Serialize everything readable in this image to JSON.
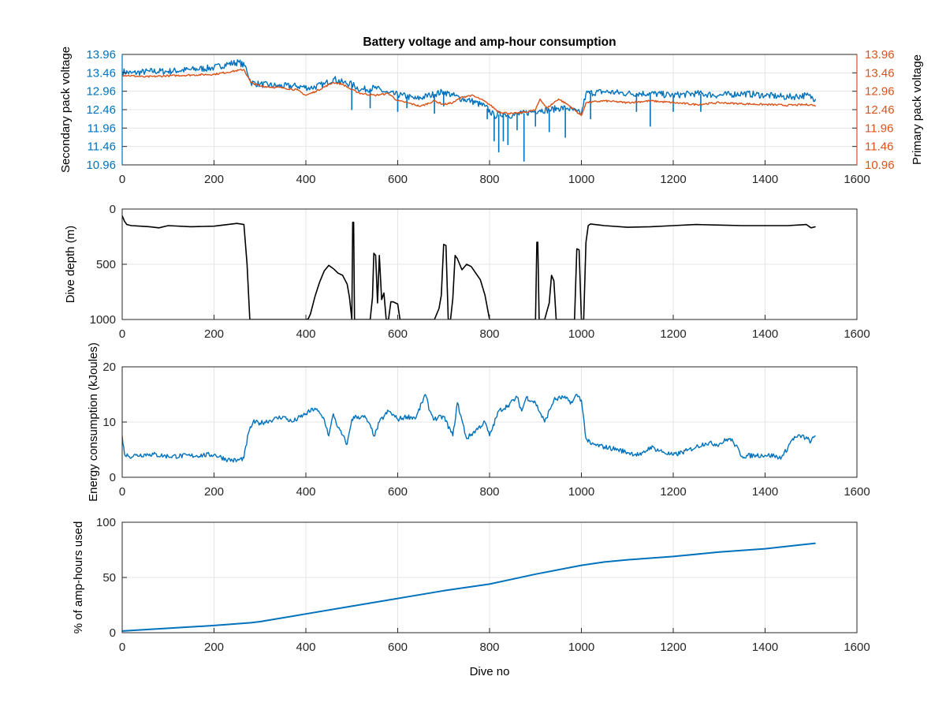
{
  "colors": {
    "secondary_voltage": "#0072BD",
    "primary_voltage": "#D95319",
    "dive_depth": "#000000",
    "energy": "#0072BD",
    "amp_hours": "#0072BD",
    "axis": "#262626"
  },
  "chart_data": [
    {
      "type": "line",
      "title": "Battery voltage and amp-hour consumption",
      "xlabel": "",
      "ylabel": "Secondary pack voltage",
      "y2label": "Primary pack voltage",
      "xlim": [
        0,
        1600
      ],
      "ylim": [
        10.96,
        13.96
      ],
      "y2lim": [
        10.96,
        13.96
      ],
      "xticks": [
        "0",
        "200",
        "400",
        "600",
        "800",
        "1000",
        "1200",
        "1400",
        "1600"
      ],
      "yticks": [
        "13.96",
        "13.46",
        "12.96",
        "12.46",
        "11.96",
        "11.46",
        "10.96"
      ],
      "y2ticks": [
        "13.96",
        "13.46",
        "12.96",
        "12.46",
        "11.96",
        "11.46",
        "10.96"
      ],
      "grid": true,
      "series": [
        {
          "name": "Secondary pack voltage",
          "axis": "left",
          "x": [
            0,
            20,
            60,
            100,
            150,
            200,
            230,
            255,
            270,
            280,
            300,
            340,
            380,
            410,
            440,
            460,
            480,
            500,
            520,
            550,
            580,
            610,
            640,
            670,
            700,
            720,
            740,
            760,
            790,
            810,
            830,
            850,
            870,
            890,
            910,
            930,
            950,
            970,
            990,
            1000,
            1010,
            1050,
            1100,
            1150,
            1200,
            1250,
            1300,
            1350,
            1400,
            1450,
            1490,
            1510
          ],
          "y": [
            13.5,
            13.45,
            13.5,
            13.5,
            13.55,
            13.6,
            13.7,
            13.75,
            13.6,
            13.2,
            13.15,
            13.1,
            13.1,
            13.05,
            13.15,
            13.3,
            13.2,
            13.15,
            13.0,
            13.05,
            12.9,
            12.85,
            12.75,
            12.85,
            12.95,
            12.85,
            12.75,
            12.7,
            12.55,
            12.3,
            12.35,
            12.3,
            12.35,
            12.4,
            12.45,
            12.45,
            12.5,
            12.5,
            12.4,
            12.35,
            12.9,
            12.95,
            12.9,
            12.9,
            12.85,
            12.9,
            12.85,
            12.9,
            12.85,
            12.8,
            12.85,
            12.75
          ],
          "spikes": [
            [
              500,
              12.45
            ],
            [
              540,
              12.5
            ],
            [
              600,
              12.4
            ],
            [
              620,
              12.5
            ],
            [
              680,
              12.35
            ],
            [
              700,
              12.55
            ],
            [
              795,
              12.2
            ],
            [
              810,
              11.6
            ],
            [
              820,
              11.3
            ],
            [
              830,
              11.6
            ],
            [
              840,
              11.5
            ],
            [
              860,
              11.9
            ],
            [
              875,
              11.05
            ],
            [
              900,
              12.0
            ],
            [
              930,
              11.85
            ],
            [
              965,
              11.7
            ],
            [
              1020,
              12.2
            ],
            [
              1120,
              12.4
            ],
            [
              1150,
              12.0
            ],
            [
              1200,
              12.4
            ],
            [
              1260,
              12.4
            ]
          ]
        },
        {
          "name": "Primary pack voltage",
          "axis": "right",
          "x": [
            0,
            50,
            100,
            150,
            200,
            240,
            265,
            280,
            300,
            350,
            380,
            400,
            420,
            460,
            480,
            500,
            520,
            550,
            580,
            600,
            620,
            650,
            680,
            700,
            720,
            740,
            760,
            780,
            800,
            820,
            850,
            880,
            900,
            910,
            925,
            950,
            970,
            990,
            1000,
            1010,
            1050,
            1100,
            1150,
            1200,
            1250,
            1300,
            1350,
            1400,
            1450,
            1500,
            1510
          ],
          "y": [
            13.4,
            13.35,
            13.38,
            13.4,
            13.42,
            13.5,
            13.55,
            13.2,
            13.1,
            13.05,
            13.0,
            12.85,
            12.95,
            13.2,
            13.15,
            13.0,
            12.9,
            12.85,
            12.9,
            12.7,
            12.65,
            12.55,
            12.7,
            12.6,
            12.65,
            12.8,
            12.85,
            12.75,
            12.6,
            12.4,
            12.35,
            12.4,
            12.45,
            12.75,
            12.5,
            12.75,
            12.6,
            12.4,
            12.3,
            12.65,
            12.7,
            12.65,
            12.7,
            12.65,
            12.6,
            12.65,
            12.62,
            12.6,
            12.58,
            12.6,
            12.55
          ]
        }
      ]
    },
    {
      "type": "line",
      "title": "",
      "xlabel": "",
      "ylabel": "Dive depth (m)",
      "xlim": [
        0,
        1600
      ],
      "ylim": [
        0,
        1000
      ],
      "y_reversed": true,
      "xticks": [
        "0",
        "200",
        "400",
        "600",
        "800",
        "1000",
        "1200",
        "1400",
        "1600"
      ],
      "yticks": [
        "0",
        "500",
        "1000"
      ],
      "grid": true,
      "series": [
        {
          "name": "",
          "x": [
            0,
            5,
            10,
            20,
            40,
            60,
            80,
            100,
            150,
            200,
            230,
            250,
            265,
            272,
            278,
            283,
            300,
            350,
            380,
            400,
            405,
            410,
            420,
            430,
            440,
            450,
            460,
            470,
            480,
            490,
            495,
            500,
            502,
            504,
            506,
            510,
            515,
            520,
            540,
            545,
            548,
            552,
            556,
            560,
            565,
            570,
            575,
            580,
            585,
            590,
            600,
            605,
            610,
            650,
            680,
            690,
            695,
            700,
            705,
            710,
            715,
            720,
            725,
            730,
            740,
            750,
            760,
            770,
            780,
            790,
            800,
            805,
            810,
            850,
            880,
            900,
            903,
            905,
            908,
            912,
            920,
            930,
            935,
            940,
            945,
            950,
            955,
            970,
            980,
            985,
            990,
            995,
            1000,
            1005,
            1010,
            1015,
            1020,
            1050,
            1100,
            1150,
            1200,
            1250,
            1300,
            1350,
            1400,
            1450,
            1490,
            1500,
            1510
          ],
          "y": [
            60,
            110,
            140,
            150,
            155,
            160,
            170,
            150,
            160,
            155,
            140,
            130,
            140,
            500,
            1000,
            1000,
            1000,
            1000,
            1000,
            1000,
            995,
            950,
            790,
            660,
            560,
            510,
            540,
            580,
            600,
            680,
            800,
            1000,
            120,
            120,
            1000,
            1000,
            1000,
            1000,
            1000,
            800,
            400,
            420,
            850,
            420,
            820,
            760,
            1000,
            1000,
            840,
            840,
            860,
            1000,
            1000,
            1000,
            1000,
            900,
            780,
            320,
            330,
            1000,
            1000,
            810,
            420,
            450,
            550,
            500,
            520,
            580,
            640,
            780,
            1000,
            1000,
            1000,
            1000,
            1000,
            1000,
            300,
            300,
            1000,
            1000,
            1000,
            850,
            600,
            650,
            1000,
            1000,
            1000,
            1000,
            1000,
            1000,
            360,
            370,
            1000,
            1000,
            300,
            150,
            135,
            150,
            165,
            160,
            150,
            140,
            145,
            150,
            150,
            150,
            140,
            170,
            160
          ]
        }
      ]
    },
    {
      "type": "line",
      "title": "",
      "xlabel": "",
      "ylabel": "Energy consumption (kJoules)",
      "xlim": [
        0,
        1600
      ],
      "ylim": [
        0,
        20
      ],
      "xticks": [
        "0",
        "200",
        "400",
        "600",
        "800",
        "1000",
        "1200",
        "1400",
        "1600"
      ],
      "yticks": [
        "20",
        "10",
        "0"
      ],
      "grid": true,
      "series": [
        {
          "name": "",
          "x": [
            0,
            5,
            15,
            30,
            60,
            100,
            150,
            200,
            230,
            250,
            265,
            275,
            285,
            300,
            330,
            350,
            370,
            400,
            420,
            440,
            450,
            460,
            470,
            490,
            500,
            510,
            530,
            550,
            560,
            580,
            600,
            620,
            640,
            660,
            670,
            680,
            700,
            720,
            730,
            750,
            770,
            790,
            800,
            820,
            840,
            860,
            870,
            880,
            900,
            920,
            940,
            960,
            980,
            990,
            1000,
            1010,
            1020,
            1050,
            1080,
            1100,
            1130,
            1150,
            1180,
            1200,
            1230,
            1250,
            1270,
            1300,
            1320,
            1330,
            1350,
            1380,
            1400,
            1420,
            1430,
            1440,
            1460,
            1480,
            1500,
            1510
          ],
          "y": [
            7.5,
            4.2,
            3.8,
            4.0,
            4.2,
            3.8,
            3.9,
            4.1,
            3.2,
            3.0,
            3.5,
            8.0,
            10.0,
            9.8,
            10.5,
            11.0,
            10.0,
            11.5,
            12.5,
            10.5,
            7.5,
            11.5,
            9.0,
            6.0,
            10.5,
            11.0,
            10.8,
            7.5,
            10.0,
            12.0,
            10.5,
            11.0,
            10.8,
            15.0,
            12.0,
            10.5,
            11.0,
            7.5,
            13.5,
            7.0,
            8.5,
            10.0,
            7.5,
            12.0,
            13.0,
            14.5,
            12.0,
            14.5,
            13.5,
            10.0,
            14.0,
            14.5,
            13.5,
            15.0,
            14.0,
            7.0,
            6.0,
            5.5,
            5.0,
            4.5,
            4.0,
            5.5,
            4.5,
            4.0,
            4.8,
            5.5,
            6.2,
            6.0,
            7.0,
            6.5,
            3.8,
            4.0,
            4.0,
            3.9,
            3.5,
            4.0,
            7.0,
            7.5,
            6.5,
            7.5
          ]
        }
      ]
    },
    {
      "type": "line",
      "title": "",
      "xlabel": "Dive no",
      "ylabel": "% of amp-hours used",
      "xlim": [
        0,
        1600
      ],
      "ylim": [
        0,
        100
      ],
      "xticks": [
        "0",
        "200",
        "400",
        "600",
        "800",
        "1000",
        "1200",
        "1400",
        "1600"
      ],
      "yticks": [
        "100",
        "50",
        "0"
      ],
      "grid": true,
      "series": [
        {
          "name": "",
          "x": [
            0,
            100,
            200,
            280,
            300,
            400,
            500,
            600,
            700,
            800,
            900,
            1000,
            1050,
            1100,
            1200,
            1300,
            1400,
            1510
          ],
          "y": [
            1.5,
            4,
            6.5,
            9,
            10,
            17,
            24,
            31,
            38,
            44,
            53,
            61,
            64,
            66,
            69,
            73,
            76,
            81
          ]
        }
      ]
    }
  ]
}
